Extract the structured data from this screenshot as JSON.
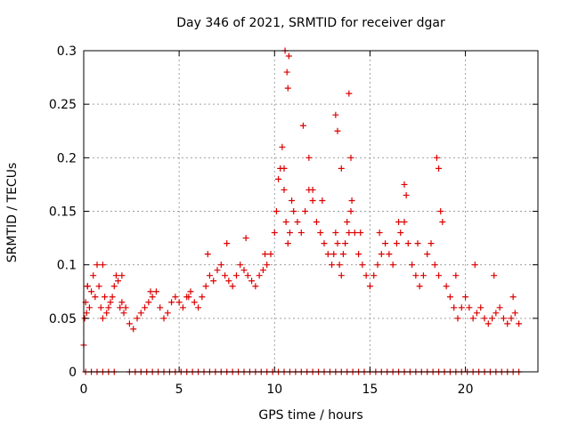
{
  "chart_data": {
    "type": "scatter",
    "title": "Day 346 of 2021, SRMTID for receiver dgar",
    "xlabel": "GPS time / hours",
    "ylabel": "SRMTID / TECUs",
    "xlim": [
      0,
      23.8
    ],
    "ylim": [
      0,
      0.3
    ],
    "x_ticks": [
      0,
      5,
      10,
      15,
      20
    ],
    "y_ticks": [
      0,
      0.05,
      0.1,
      0.15,
      0.2,
      0.25,
      0.3
    ],
    "x_tick_labels": [
      "0",
      "5",
      "10",
      "15",
      "20"
    ],
    "y_tick_labels": [
      "0",
      "0.05",
      "0.1",
      "0.15",
      "0.2",
      "0.25",
      "0.3"
    ],
    "grid": true,
    "marker": "plus",
    "color": "#dd0000",
    "series": [
      {
        "name": "SRMTID",
        "x": [
          0.0,
          0.05,
          0.1,
          0.15,
          0.2,
          0.3,
          0.4,
          0.5,
          0.6,
          0.7,
          0.8,
          0.9,
          1.0,
          1.1,
          1.2,
          1.3,
          1.4,
          1.5,
          1.6,
          1.7,
          1.8,
          1.9,
          2.0,
          2.1,
          2.2,
          2.4,
          2.6,
          2.8,
          3.0,
          3.2,
          3.4,
          3.6,
          3.8,
          4.0,
          4.2,
          4.4,
          4.6,
          4.8,
          5.0,
          5.2,
          5.4,
          5.6,
          5.8,
          6.0,
          6.2,
          6.4,
          6.6,
          6.8,
          7.0,
          7.2,
          7.4,
          7.6,
          7.8,
          8.0,
          8.2,
          8.4,
          8.6,
          8.8,
          9.0,
          9.2,
          9.4,
          9.6,
          9.8,
          10.0,
          10.1,
          10.2,
          10.3,
          10.4,
          10.5,
          10.6,
          10.7,
          10.8,
          10.9,
          11.0,
          11.2,
          11.4,
          11.6,
          11.8,
          12.0,
          12.2,
          12.4,
          12.6,
          12.8,
          13.0,
          13.1,
          13.2,
          13.3,
          13.4,
          13.5,
          13.6,
          13.7,
          13.8,
          13.9,
          14.0,
          14.2,
          14.4,
          14.6,
          14.8,
          15.0,
          15.2,
          15.4,
          15.6,
          15.8,
          16.0,
          16.2,
          16.4,
          16.6,
          16.8,
          17.0,
          17.2,
          17.4,
          17.6,
          17.8,
          18.0,
          18.2,
          18.4,
          18.6,
          18.8,
          19.0,
          19.2,
          19.4,
          19.6,
          19.8,
          20.0,
          20.2,
          20.4,
          20.6,
          20.8,
          21.0,
          21.2,
          21.4,
          21.6,
          21.8,
          22.0,
          22.2,
          22.4,
          22.6,
          22.8,
          0.2,
          1.0,
          2.0,
          3.5,
          5.5,
          6.5,
          7.5,
          8.5,
          9.5,
          10.5,
          10.55,
          10.65,
          10.7,
          10.75,
          11.5,
          11.8,
          12.0,
          12.5,
          13.2,
          13.3,
          13.5,
          13.9,
          14.0,
          14.05,
          14.5,
          15.5,
          16.5,
          16.8,
          16.9,
          17.5,
          18.5,
          18.6,
          18.7,
          19.5,
          20.5,
          21.5,
          22.5
        ],
        "y": [
          0.025,
          0.05,
          0.065,
          0.055,
          0.08,
          0.06,
          0.075,
          0.09,
          0.07,
          0.1,
          0.08,
          0.06,
          0.05,
          0.07,
          0.055,
          0.06,
          0.065,
          0.07,
          0.08,
          0.09,
          0.085,
          0.06,
          0.065,
          0.055,
          0.06,
          0.045,
          0.04,
          0.05,
          0.055,
          0.06,
          0.065,
          0.07,
          0.075,
          0.06,
          0.05,
          0.055,
          0.065,
          0.07,
          0.065,
          0.06,
          0.07,
          0.075,
          0.065,
          0.06,
          0.07,
          0.08,
          0.09,
          0.085,
          0.095,
          0.1,
          0.09,
          0.085,
          0.08,
          0.09,
          0.1,
          0.095,
          0.09,
          0.085,
          0.08,
          0.09,
          0.095,
          0.1,
          0.11,
          0.13,
          0.15,
          0.18,
          0.19,
          0.21,
          0.17,
          0.14,
          0.12,
          0.13,
          0.16,
          0.15,
          0.14,
          0.13,
          0.15,
          0.17,
          0.16,
          0.14,
          0.13,
          0.12,
          0.11,
          0.1,
          0.11,
          0.13,
          0.12,
          0.1,
          0.09,
          0.11,
          0.12,
          0.14,
          0.13,
          0.15,
          0.13,
          0.11,
          0.1,
          0.09,
          0.08,
          0.09,
          0.1,
          0.11,
          0.12,
          0.11,
          0.1,
          0.12,
          0.13,
          0.14,
          0.12,
          0.1,
          0.09,
          0.08,
          0.09,
          0.11,
          0.12,
          0.1,
          0.09,
          0.14,
          0.08,
          0.07,
          0.06,
          0.05,
          0.06,
          0.07,
          0.06,
          0.05,
          0.055,
          0.06,
          0.05,
          0.045,
          0.05,
          0.055,
          0.06,
          0.05,
          0.045,
          0.05,
          0.055,
          0.045,
          0.08,
          0.1,
          0.09,
          0.075,
          0.07,
          0.11,
          0.12,
          0.125,
          0.11,
          0.19,
          0.3,
          0.28,
          0.265,
          0.295,
          0.23,
          0.2,
          0.17,
          0.16,
          0.24,
          0.225,
          0.19,
          0.26,
          0.2,
          0.16,
          0.13,
          0.13,
          0.14,
          0.175,
          0.165,
          0.12,
          0.2,
          0.19,
          0.15,
          0.09,
          0.1,
          0.09,
          0.07
        ],
        "zeros_x": [
          0.1,
          0.4,
          0.7,
          1.0,
          1.3,
          1.6,
          2.4,
          2.7,
          3.0,
          3.3,
          3.6,
          3.9,
          4.2,
          4.5,
          4.8,
          5.1,
          5.4,
          5.7,
          6.0,
          6.3,
          6.6,
          6.9,
          7.2,
          7.5,
          7.8,
          8.1,
          8.4,
          8.7,
          9.0,
          9.3,
          9.6,
          9.9,
          10.2,
          10.5,
          10.8,
          11.1,
          11.4,
          11.7,
          12.0,
          12.3,
          12.6,
          12.9,
          13.2,
          13.5,
          13.8,
          14.1,
          14.4,
          14.7,
          15.0,
          15.3,
          15.6,
          15.9,
          16.2,
          16.5,
          16.8,
          17.1,
          17.4,
          17.7,
          18.0,
          18.3,
          18.6,
          18.9,
          19.2,
          19.5,
          19.8,
          20.1,
          20.4,
          20.7,
          21.0,
          21.3,
          21.6,
          21.9,
          22.2,
          22.5,
          22.8
        ]
      }
    ]
  }
}
